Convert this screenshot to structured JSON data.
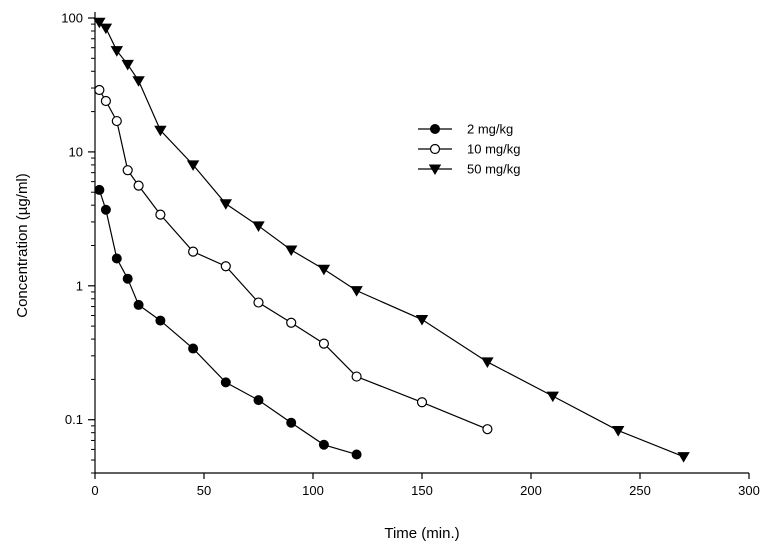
{
  "chart_data": {
    "type": "line",
    "title": "",
    "xlabel": "Time (min.)",
    "ylabel": "Concentration (µg/ml)",
    "xlim": [
      0,
      300
    ],
    "ylim": [
      0.04,
      100
    ],
    "y_scale": "log",
    "x_ticks": [
      0,
      50,
      100,
      150,
      200,
      250,
      300
    ],
    "x_tick_labels": [
      "0",
      "50",
      "100",
      "150",
      "200",
      "250",
      "300"
    ],
    "y_ticks": [
      0.1,
      1,
      10,
      100
    ],
    "y_tick_labels": [
      "0.1",
      "1",
      "10",
      "100"
    ],
    "grid": false,
    "legend_position": "upper-middle",
    "series": [
      {
        "name": "2 mg/kg",
        "marker": "filled-circle",
        "x": [
          2,
          5,
          10,
          15,
          20,
          30,
          45,
          60,
          75,
          90,
          105,
          120
        ],
        "y": [
          5.2,
          3.7,
          1.6,
          1.13,
          0.72,
          0.55,
          0.34,
          0.19,
          0.14,
          0.095,
          0.065,
          0.055
        ]
      },
      {
        "name": "10 mg/kg",
        "marker": "open-circle",
        "x": [
          2,
          5,
          10,
          15,
          20,
          30,
          45,
          60,
          75,
          90,
          105,
          120,
          150,
          180
        ],
        "y": [
          29,
          24,
          17,
          7.3,
          5.6,
          3.4,
          1.8,
          1.4,
          0.75,
          0.53,
          0.37,
          0.21,
          0.135,
          0.085
        ]
      },
      {
        "name": "50 mg/kg",
        "marker": "filled-triangle-down",
        "x": [
          2,
          5,
          10,
          15,
          20,
          30,
          45,
          60,
          75,
          90,
          105,
          120,
          150,
          180,
          210,
          240,
          270
        ],
        "y": [
          93,
          84,
          57,
          45,
          34,
          14.5,
          8.0,
          4.1,
          2.8,
          1.85,
          1.33,
          0.92,
          0.56,
          0.27,
          0.15,
          0.083,
          0.053
        ]
      }
    ]
  }
}
